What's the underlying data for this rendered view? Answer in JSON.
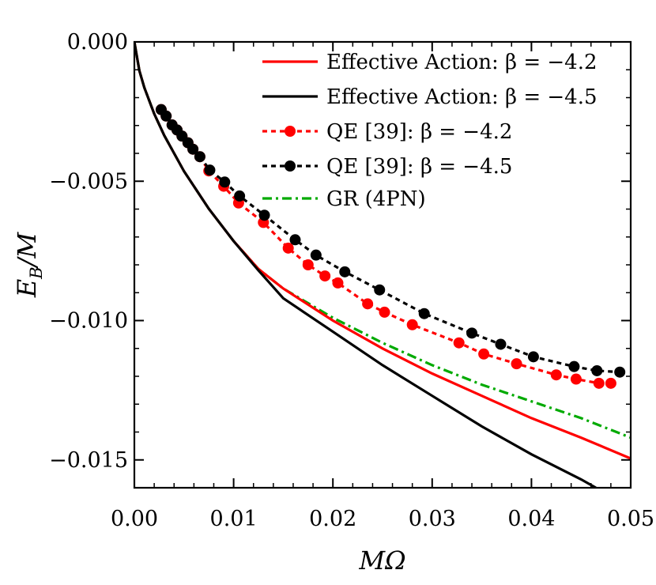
{
  "chart_data": {
    "type": "line",
    "xlabel": "MΩ",
    "ylabel": "E_B/M",
    "xlim": [
      0.0,
      0.05
    ],
    "ylim": [
      -0.016,
      0.0
    ],
    "x_ticks": [
      "0.00",
      "0.01",
      "0.02",
      "0.03",
      "0.04",
      "0.05"
    ],
    "y_ticks": [
      "0.000",
      "−0.005",
      "−0.010",
      "−0.015"
    ],
    "x_tick_values": [
      0.0,
      0.01,
      0.02,
      0.03,
      0.04,
      0.05
    ],
    "y_tick_values": [
      0.0,
      -0.005,
      -0.01,
      -0.015
    ],
    "grid": false,
    "legend_position": "top-right",
    "series": [
      {
        "name": "Effective Action: β = −4.2",
        "color": "#ff0000",
        "style": "solid",
        "markers": false,
        "x": [
          0.0,
          0.0005,
          0.001,
          0.002,
          0.003,
          0.005,
          0.0075,
          0.01,
          0.0125,
          0.015,
          0.02,
          0.025,
          0.03,
          0.035,
          0.04,
          0.045,
          0.05
        ],
        "y": [
          0.0,
          -0.00103,
          -0.00164,
          -0.00258,
          -0.00335,
          -0.00464,
          -0.00599,
          -0.00715,
          -0.00815,
          -0.00885,
          -0.01,
          -0.011,
          -0.0119,
          -0.0127,
          -0.0135,
          -0.0142,
          -0.01495
        ]
      },
      {
        "name": "Effective Action: β = −4.5",
        "color": "#000000",
        "style": "solid",
        "markers": false,
        "x": [
          0.0,
          0.0005,
          0.001,
          0.002,
          0.003,
          0.005,
          0.0075,
          0.01,
          0.0125,
          0.015,
          0.02,
          0.025,
          0.03,
          0.035,
          0.04,
          0.045,
          0.0465
        ],
        "y": [
          0.0,
          -0.00103,
          -0.00164,
          -0.00258,
          -0.00335,
          -0.00464,
          -0.00599,
          -0.00715,
          -0.0082,
          -0.0092,
          -0.0104,
          -0.0116,
          -0.0127,
          -0.0138,
          -0.0148,
          -0.0157,
          -0.016
        ]
      },
      {
        "name": "QE [39]: β = −4.2",
        "color": "#ff0000",
        "style": "dashed",
        "markers": true,
        "x": [
          0.0027,
          0.0032,
          0.0038,
          0.0043,
          0.0048,
          0.0054,
          0.0059,
          0.0066,
          0.0075,
          0.009,
          0.0105,
          0.013,
          0.0155,
          0.0175,
          0.0192,
          0.0205,
          0.0235,
          0.0252,
          0.028,
          0.0327,
          0.0352,
          0.0385,
          0.0425,
          0.0445,
          0.0468,
          0.048
        ],
        "y": [
          -0.00243,
          -0.00266,
          -0.00298,
          -0.00316,
          -0.00338,
          -0.00362,
          -0.00385,
          -0.00412,
          -0.00463,
          -0.00518,
          -0.00578,
          -0.00648,
          -0.0074,
          -0.008,
          -0.0084,
          -0.00865,
          -0.0094,
          -0.0097,
          -0.01015,
          -0.0108,
          -0.0112,
          -0.01155,
          -0.01195,
          -0.0121,
          -0.01225,
          -0.01225
        ]
      },
      {
        "name": "QE [39]: β = −4.5",
        "color": "#000000",
        "style": "dashed",
        "markers": true,
        "x": [
          0.0027,
          0.0032,
          0.0038,
          0.0043,
          0.0048,
          0.0054,
          0.0059,
          0.0066,
          0.0076,
          0.0091,
          0.0106,
          0.0131,
          0.0162,
          0.0183,
          0.0212,
          0.0247,
          0.0292,
          0.034,
          0.0369,
          0.0402,
          0.0443,
          0.0466,
          0.0489
        ],
        "y": [
          -0.00243,
          -0.00266,
          -0.00298,
          -0.00316,
          -0.00338,
          -0.00362,
          -0.00385,
          -0.00412,
          -0.0046,
          -0.00503,
          -0.00553,
          -0.00622,
          -0.0071,
          -0.00765,
          -0.00825,
          -0.0089,
          -0.00975,
          -0.01045,
          -0.01085,
          -0.0113,
          -0.01165,
          -0.0118,
          -0.01185
        ]
      },
      {
        "name": "GR (4PN)",
        "color": "#00aa00",
        "style": "dashdot",
        "markers": false,
        "x": [
          0.0,
          0.0005,
          0.001,
          0.002,
          0.003,
          0.005,
          0.0075,
          0.01,
          0.0125,
          0.015,
          0.02,
          0.025,
          0.03,
          0.035,
          0.04,
          0.045,
          0.05
        ],
        "y": [
          0.0,
          -0.00103,
          -0.00164,
          -0.00258,
          -0.00335,
          -0.00464,
          -0.00599,
          -0.00715,
          -0.00815,
          -0.00885,
          -0.0099,
          -0.0108,
          -0.0116,
          -0.0123,
          -0.0129,
          -0.0135,
          -0.0142
        ]
      }
    ]
  }
}
